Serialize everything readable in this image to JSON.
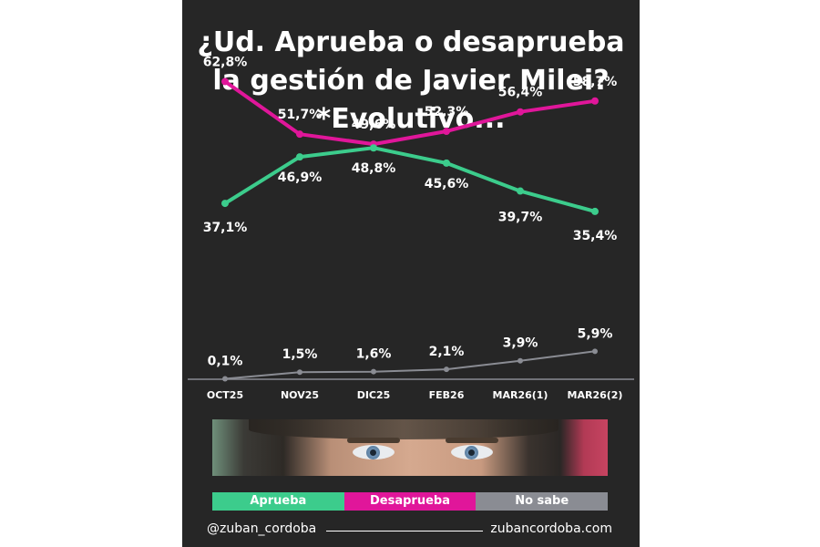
{
  "title": {
    "line1": "¿Ud. Aprueba o desaprueba",
    "line2": "la gestión de Javier Milei?",
    "line3": "*Evolutivo..."
  },
  "chart_data": {
    "type": "line",
    "categories": [
      "OCT25",
      "NOV25",
      "DIC25",
      "FEB26",
      "MAR26(1)",
      "MAR26(2)"
    ],
    "series": [
      {
        "name": "Desaprueba",
        "color": "#e0169a",
        "values": [
          62.8,
          51.7,
          49.6,
          52.3,
          56.4,
          58.7
        ],
        "labels": [
          "62,8%",
          "51,7%",
          "49,6%",
          "52,3%",
          "56,4%",
          "58,7%"
        ]
      },
      {
        "name": "Aprueba",
        "color": "#3ccc8c",
        "values": [
          37.1,
          46.9,
          48.8,
          45.6,
          39.7,
          35.4
        ],
        "labels": [
          "37,1%",
          "46,9%",
          "48,8%",
          "45,6%",
          "39,7%",
          "35,4%"
        ]
      },
      {
        "name": "No sabe",
        "color": "#8a8c93",
        "values": [
          0.1,
          1.5,
          1.6,
          2.1,
          3.9,
          5.9
        ],
        "labels": [
          "0,1%",
          "1,5%",
          "1,6%",
          "2,1%",
          "3,9%",
          "5,9%"
        ]
      }
    ],
    "ylim": [
      0,
      70
    ],
    "grid": false,
    "legend": "bottom"
  },
  "legend": [
    {
      "label": "Aprueba",
      "color": "#3ccc8c"
    },
    {
      "label": "Desaprueba",
      "color": "#e0169a"
    },
    {
      "label": "No sabe",
      "color": "#8a8c93"
    }
  ],
  "footer": {
    "handle": "@zuban_cordoba",
    "site": "zubancordoba.com"
  }
}
